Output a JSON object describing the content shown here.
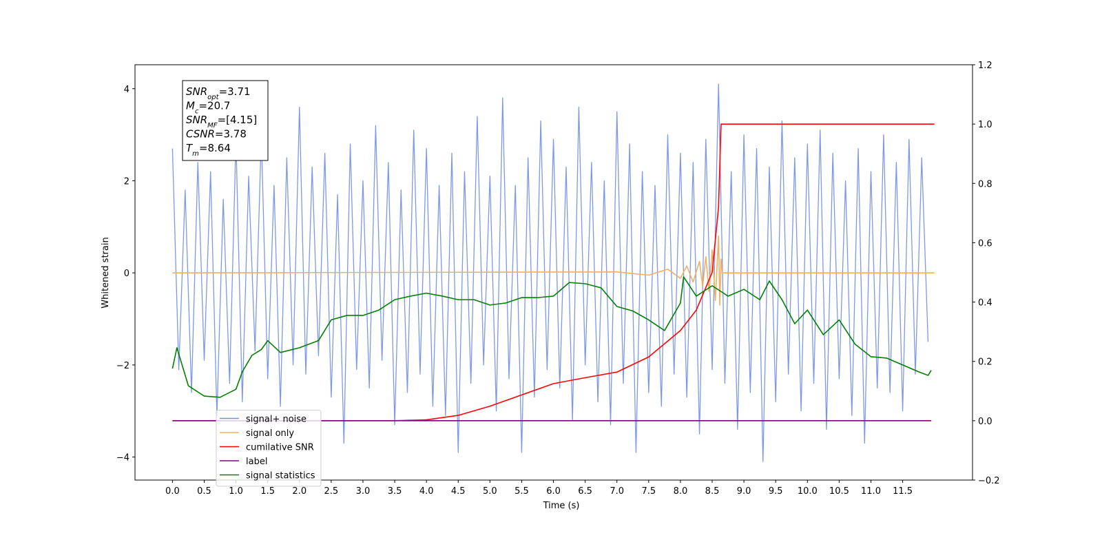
{
  "chart_data": {
    "type": "line",
    "xlabel": "Time (s)",
    "ylabel": "Whitened strain",
    "xlim": [
      -0.59,
      12.6
    ],
    "ylim": [
      -4.5,
      4.52
    ],
    "y2lim": [
      -0.2,
      1.2
    ],
    "xticks": [
      {
        "value": 0,
        "label": "0.0"
      },
      0.5,
      {
        "value": 1,
        "label": "1.0"
      },
      1.5,
      {
        "value": 2,
        "label": "2.0"
      },
      2.5,
      {
        "value": 3,
        "label": "3.0"
      },
      3.5,
      {
        "value": 4,
        "label": "4.0"
      },
      4.5,
      {
        "value": 5,
        "label": "5.0"
      },
      5.5,
      {
        "value": 6,
        "label": "6.0"
      },
      6.5,
      {
        "value": 7,
        "label": "7.0"
      },
      7.5,
      {
        "value": 8,
        "label": "8.0"
      },
      8.5,
      {
        "value": 9,
        "label": "9.0"
      },
      9.5,
      {
        "value": 10,
        "label": "10.0"
      },
      10.5,
      {
        "value": 11,
        "label": "11.0"
      },
      11.5
    ],
    "yticks": [
      {
        "value": -4,
        "label": "−4"
      },
      {
        "value": -2,
        "label": "−2"
      },
      0,
      2,
      4
    ],
    "y2ticks": [
      {
        "value": -0.2,
        "label": "−0.2"
      },
      {
        "value": 0,
        "label": "0.0"
      },
      0.2,
      0.4,
      0.6,
      0.8,
      {
        "value": 1,
        "label": "1.0"
      },
      1.2
    ],
    "legend_loc": "lower left",
    "annotations": [
      {
        "main": "SNR",
        "sub": "opt",
        "rest": "=3.71"
      },
      {
        "main": "M",
        "sub": "c",
        "rest": "=20.7"
      },
      {
        "main": "SNR",
        "sub": "MF",
        "rest": "=[4.15]"
      },
      {
        "main": "CSNR",
        "sub": "",
        "rest": "=3.78"
      },
      {
        "main": "T",
        "sub": "m",
        "rest": "=8.64"
      }
    ],
    "series": [
      {
        "name": "signal+ noise",
        "color": "#6f8de6",
        "x": [
          0.0,
          0.1,
          0.2,
          0.3,
          0.4,
          0.5,
          0.6,
          0.7,
          0.8,
          0.9,
          1.0,
          1.1,
          1.2,
          1.3,
          1.4,
          1.5,
          1.6,
          1.7,
          1.8,
          1.9,
          2.0,
          2.1,
          2.2,
          2.3,
          2.4,
          2.5,
          2.6,
          2.7,
          2.8,
          2.9,
          3.0,
          3.1,
          3.2,
          3.3,
          3.4,
          3.5,
          3.6,
          3.7,
          3.8,
          3.9,
          4.0,
          4.1,
          4.2,
          4.3,
          4.4,
          4.5,
          4.6,
          4.7,
          4.8,
          4.9,
          5.0,
          5.1,
          5.2,
          5.3,
          5.4,
          5.5,
          5.6,
          5.7,
          5.8,
          5.9,
          6.0,
          6.1,
          6.2,
          6.3,
          6.4,
          6.5,
          6.6,
          6.7,
          6.8,
          6.9,
          7.0,
          7.1,
          7.2,
          7.3,
          7.4,
          7.5,
          7.6,
          7.7,
          7.8,
          7.9,
          8.0,
          8.1,
          8.2,
          8.3,
          8.4,
          8.5,
          8.6,
          8.7,
          8.8,
          8.9,
          9.0,
          9.1,
          9.2,
          9.3,
          9.4,
          9.5,
          9.6,
          9.7,
          9.8,
          9.9,
          10.0,
          10.1,
          10.2,
          10.3,
          10.4,
          10.5,
          10.6,
          10.7,
          10.8,
          10.9,
          11.0,
          11.1,
          11.2,
          11.3,
          11.4,
          11.5,
          11.6,
          11.7,
          11.8,
          11.9
        ],
        "values": [
          2.7,
          -2.1,
          1.8,
          -2.6,
          2.4,
          -1.9,
          2.2,
          -3.1,
          1.6,
          -2.4,
          2.9,
          -2.8,
          2.1,
          -1.7,
          3.0,
          -2.3,
          1.9,
          -2.9,
          2.5,
          -2.0,
          3.6,
          -2.2,
          2.3,
          -1.8,
          2.6,
          -2.7,
          1.7,
          -3.7,
          2.8,
          -2.1,
          2.0,
          -2.5,
          3.2,
          -1.9,
          2.4,
          -3.3,
          1.8,
          -2.6,
          3.1,
          -2.2,
          2.7,
          -2.9,
          1.9,
          -3.1,
          2.6,
          -3.9,
          2.2,
          -2.4,
          3.4,
          -2.0,
          2.1,
          -3.0,
          3.8,
          -2.3,
          1.9,
          -3.9,
          2.5,
          -2.7,
          3.3,
          -2.1,
          2.9,
          -2.5,
          2.3,
          -3.2,
          3.6,
          -2.0,
          2.4,
          -2.8,
          2.0,
          -3.3,
          3.5,
          -2.4,
          2.8,
          -3.9,
          2.2,
          -2.6,
          1.9,
          -2.9,
          3.0,
          -2.2,
          2.6,
          -2.7,
          2.4,
          -3.5,
          2.9,
          -2.1,
          4.1,
          -2.4,
          2.2,
          -3.4,
          3.0,
          -2.6,
          2.7,
          -4.1,
          2.3,
          -2.8,
          3.3,
          -2.2,
          2.5,
          -3.0,
          2.8,
          -2.4,
          3.1,
          -3.4,
          2.6,
          -2.3,
          2.0,
          -3.1,
          2.7,
          -3.7,
          2.2,
          -2.5,
          3.0,
          -2.6,
          2.4,
          -3.0,
          2.9,
          -2.2,
          2.5,
          -1.5
        ]
      },
      {
        "name": "signal only",
        "color": "#f0b060",
        "x": [
          0,
          7.0,
          7.5,
          7.8,
          8.0,
          8.1,
          8.2,
          8.3,
          8.35,
          8.4,
          8.45,
          8.5,
          8.55,
          8.6,
          8.62,
          8.64,
          8.66,
          12.0
        ],
        "values": [
          0,
          0.02,
          -0.05,
          0.08,
          -0.12,
          0.15,
          -0.2,
          0.25,
          -0.3,
          0.35,
          -0.4,
          0.5,
          -0.6,
          0.8,
          -0.7,
          0.3,
          0,
          0
        ]
      },
      {
        "name": "cumilative SNR",
        "color": "#ff0000",
        "axis": "y2",
        "x": [
          0,
          3.5,
          4.0,
          4.5,
          5.0,
          5.5,
          6.0,
          6.5,
          7.0,
          7.5,
          8.0,
          8.25,
          8.5,
          8.6,
          8.64,
          12.0
        ],
        "values": [
          0,
          0,
          0.003,
          0.018,
          0.049,
          0.087,
          0.125,
          0.145,
          0.164,
          0.215,
          0.304,
          0.373,
          0.5,
          0.72,
          1.0,
          1.0
        ]
      },
      {
        "name": "label",
        "color": "#800080",
        "axis": "y2",
        "x": [
          0,
          11.95
        ],
        "values": [
          0,
          0
        ]
      },
      {
        "name": "signal statistics",
        "color": "#008000",
        "axis": "y2",
        "x": [
          0.0,
          0.07,
          0.25,
          0.5,
          0.75,
          1.0,
          1.1,
          1.25,
          1.4,
          1.5,
          1.7,
          2.0,
          2.3,
          2.5,
          2.75,
          3.0,
          3.25,
          3.5,
          3.75,
          4.0,
          4.25,
          4.5,
          4.75,
          5.0,
          5.25,
          5.5,
          5.75,
          6.0,
          6.25,
          6.5,
          6.75,
          7.0,
          7.25,
          7.5,
          7.75,
          8.0,
          8.05,
          8.25,
          8.5,
          8.75,
          9.0,
          9.25,
          9.4,
          9.6,
          9.8,
          10.0,
          10.25,
          10.5,
          10.75,
          11.0,
          11.25,
          11.5,
          11.75,
          11.9,
          11.95
        ],
        "values": [
          0.176,
          0.246,
          0.118,
          0.083,
          0.079,
          0.106,
          0.165,
          0.22,
          0.24,
          0.27,
          0.23,
          0.246,
          0.27,
          0.34,
          0.355,
          0.355,
          0.373,
          0.408,
          0.42,
          0.43,
          0.42,
          0.408,
          0.408,
          0.39,
          0.397,
          0.415,
          0.415,
          0.42,
          0.466,
          0.462,
          0.448,
          0.385,
          0.37,
          0.34,
          0.304,
          0.397,
          0.485,
          0.42,
          0.455,
          0.42,
          0.443,
          0.408,
          0.471,
          0.408,
          0.327,
          0.373,
          0.29,
          0.34,
          0.258,
          0.216,
          0.211,
          0.188,
          0.165,
          0.153,
          0.17
        ]
      }
    ]
  }
}
